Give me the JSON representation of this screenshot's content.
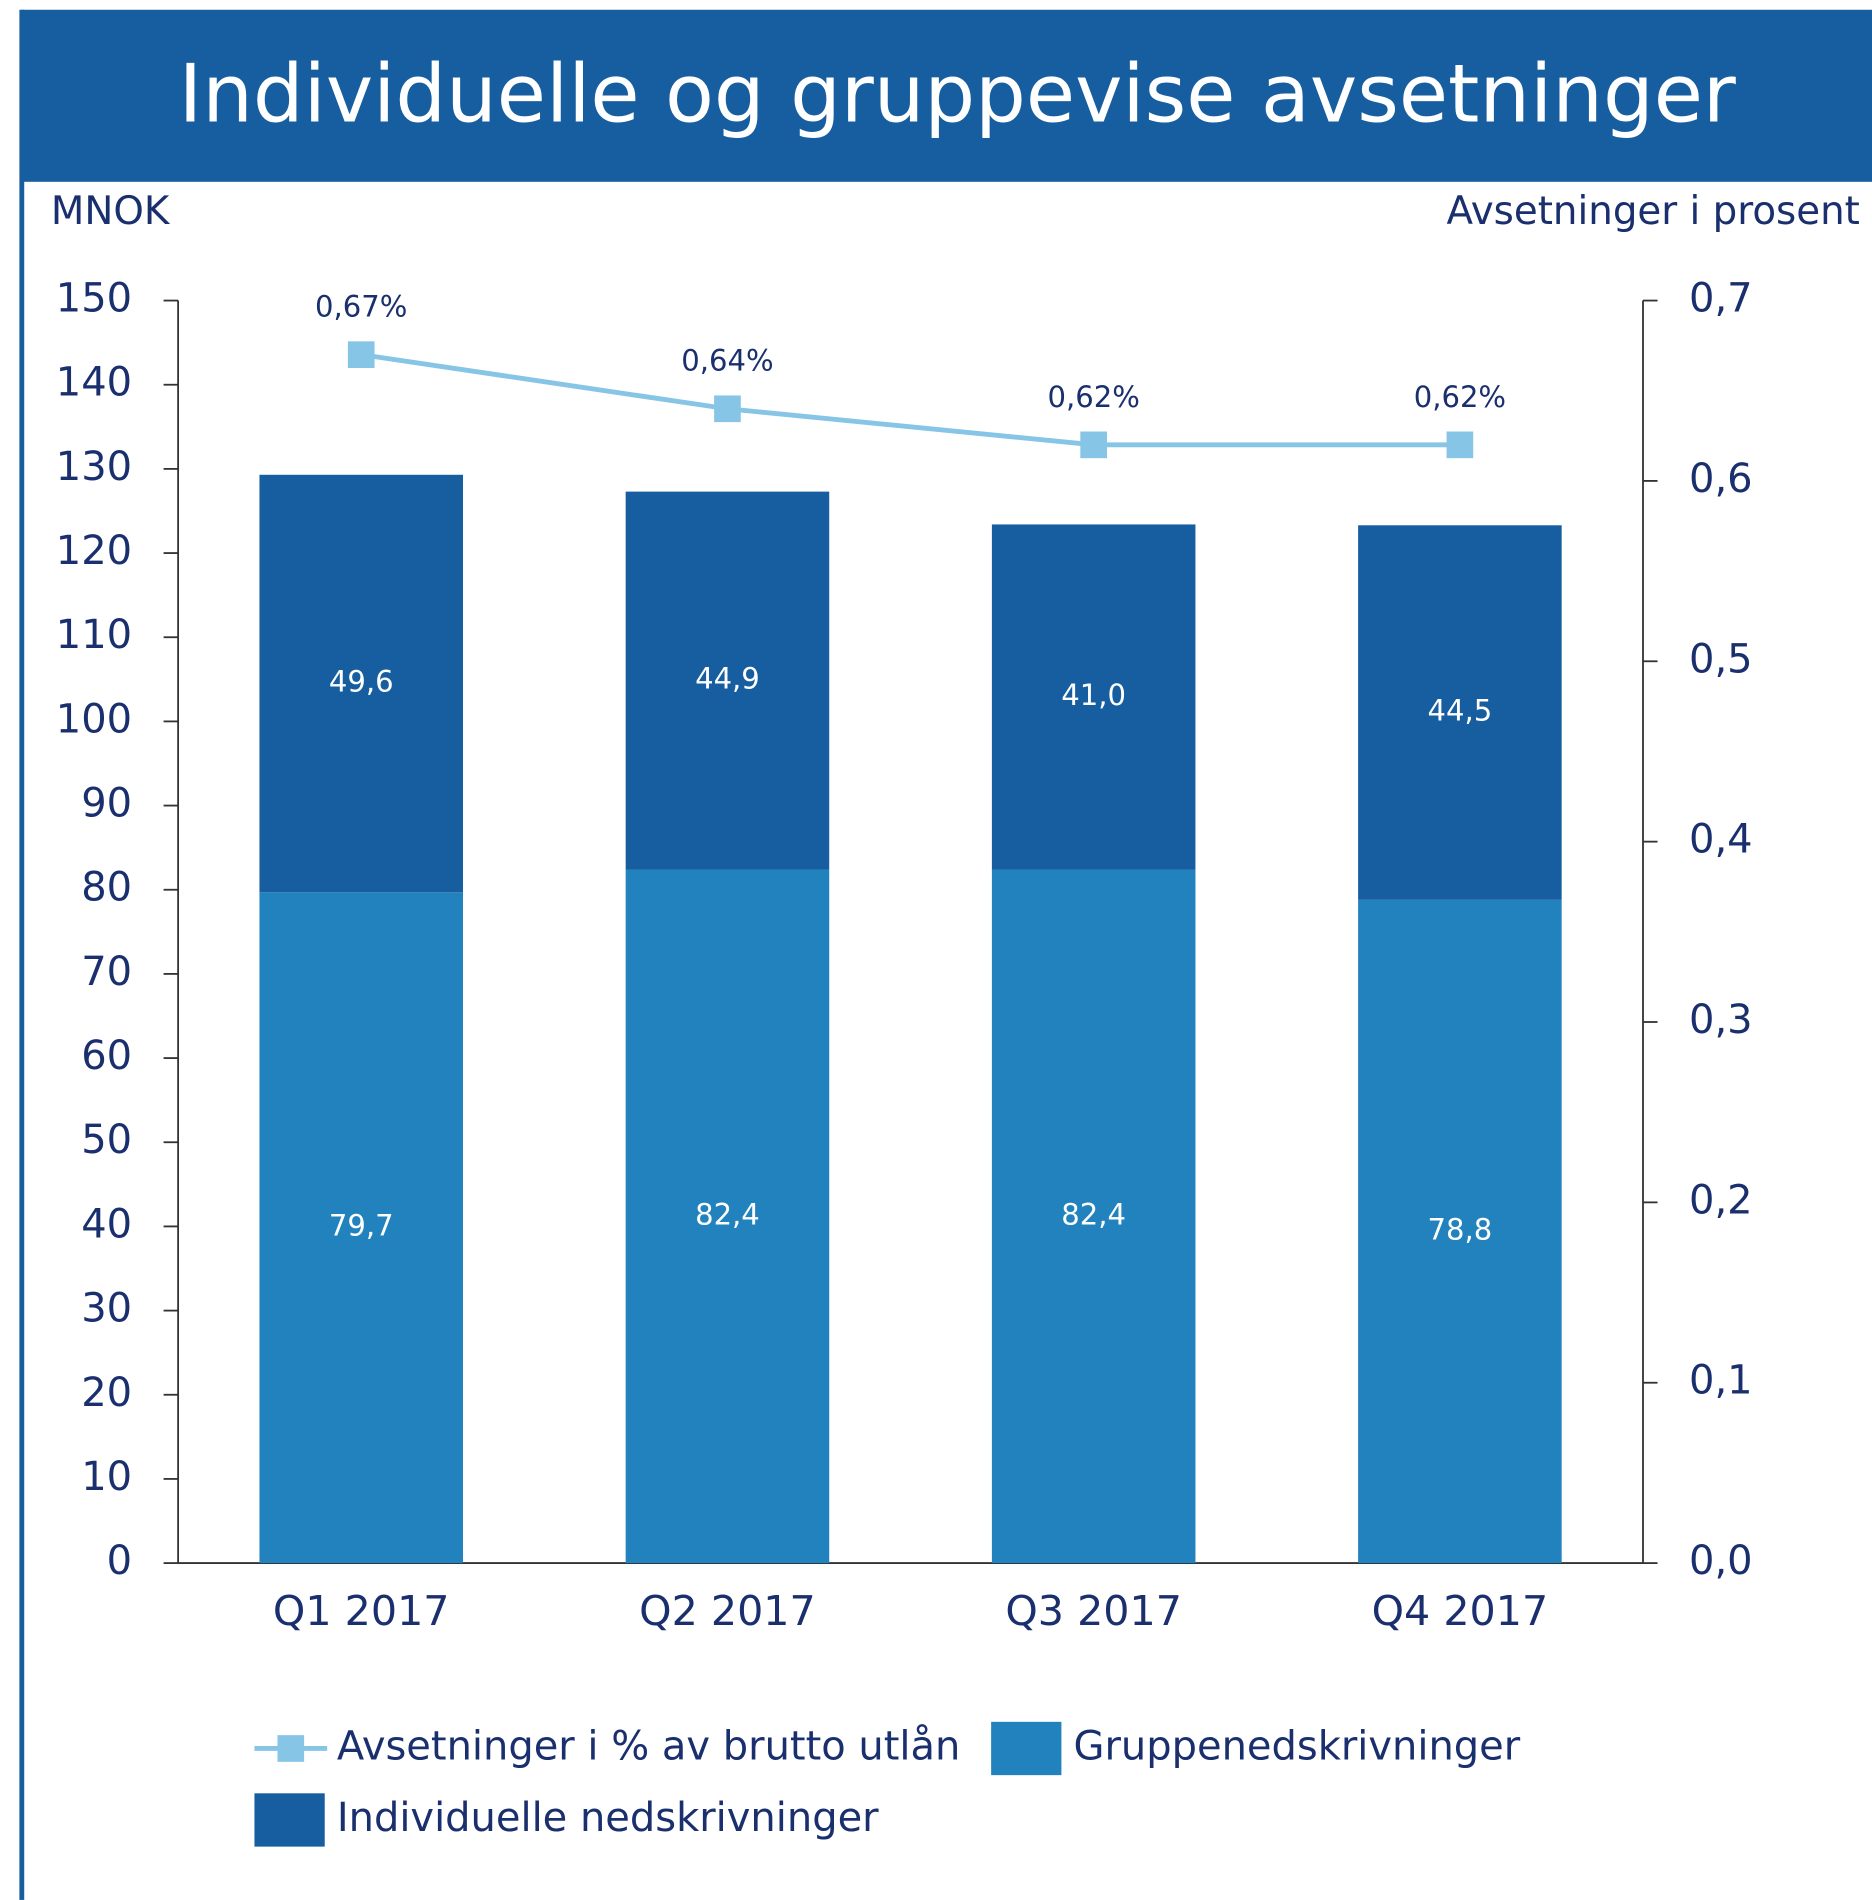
{
  "chart_data": {
    "type": "bar",
    "stacked": true,
    "title": "Individuelle og gruppevise avsetninger",
    "y_label": "MNOK",
    "y2_label": "Avsetninger i prosent",
    "categories": [
      "Q1 2017",
      "Q2 2017",
      "Q3 2017",
      "Q4 2017"
    ],
    "series": [
      {
        "name": "Gruppenedskrivninger",
        "color": "#2282be",
        "values": [
          79.7,
          82.4,
          82.4,
          78.8
        ],
        "value_labels": [
          "79,7",
          "82,4",
          "82,4",
          "78,8"
        ]
      },
      {
        "name": "Individuelle nedskrivninger",
        "color": "#175ea0",
        "values": [
          49.6,
          44.9,
          41.0,
          44.5
        ],
        "value_labels": [
          "49,6",
          "44,9",
          "41,0",
          "44,5"
        ]
      },
      {
        "name": "Avsetninger i % av brutto utlån",
        "type": "line",
        "axis": "y2",
        "color": "#86c5e6",
        "values": [
          0.67,
          0.64,
          0.62,
          0.62
        ],
        "value_labels": [
          "0,67%",
          "0,64%",
          "0,62%",
          "0,62%"
        ]
      }
    ],
    "ylim": [
      0,
      150
    ],
    "yticks": [
      0,
      10,
      20,
      30,
      40,
      50,
      60,
      70,
      80,
      90,
      100,
      110,
      120,
      130,
      140,
      150
    ],
    "y2lim": [
      0,
      0.7
    ],
    "y2ticks": [
      {
        "value": 0,
        "label": "0,0"
      },
      {
        "value": 0.1,
        "label": "0,1"
      },
      {
        "value": 0.2,
        "label": "0,2"
      },
      {
        "value": 0.3,
        "label": "0,3"
      },
      {
        "value": 0.4,
        "label": "0,4"
      },
      {
        "value": 0.5,
        "label": "0,5"
      },
      {
        "value": 0.6,
        "label": "0,6"
      },
      {
        "value": 0.7,
        "label": "0,7"
      }
    ]
  }
}
